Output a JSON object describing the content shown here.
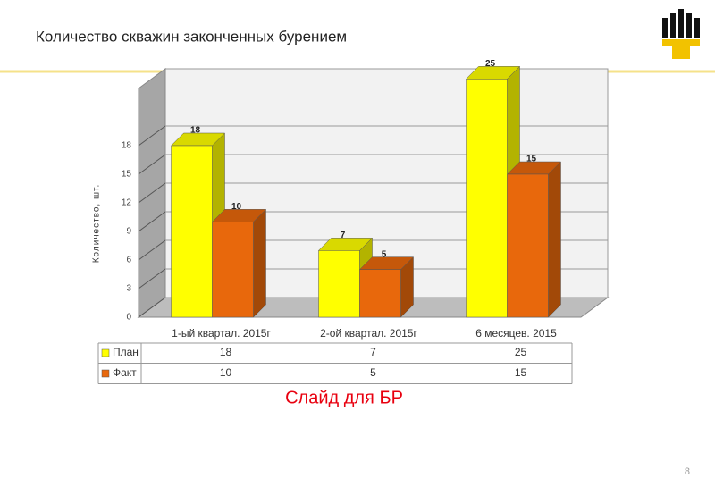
{
  "chart_data": {
    "type": "bar",
    "title": "Количество скважин законченных бурением",
    "y_label": "Количество, шт.",
    "categories": [
      "1-ый квартал. 2015г",
      "2-ой квартал. 2015г",
      "6 месяцев. 2015"
    ],
    "series": [
      {
        "name": "План",
        "color": "#ffff00",
        "values": [
          18,
          7,
          25
        ]
      },
      {
        "name": "Факт",
        "color": "#e8680c",
        "values": [
          10,
          5,
          15
        ]
      }
    ],
    "ylim": [
      0,
      24
    ],
    "yticks": [
      0,
      3,
      6,
      9,
      12,
      15,
      18
    ],
    "grid": true,
    "caption": "Слайд для БР",
    "page_number": "8"
  }
}
